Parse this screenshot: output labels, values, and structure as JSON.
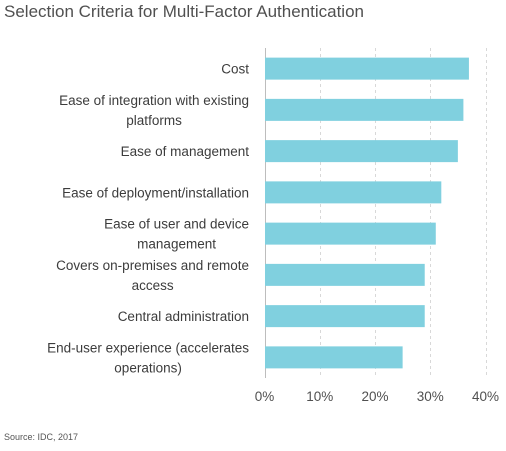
{
  "chart_data": {
    "type": "bar",
    "orientation": "horizontal",
    "title": "Selection Criteria for Multi-Factor Authentication",
    "source": "Source: IDC, 2017",
    "categories": [
      [
        "Cost"
      ],
      [
        "Ease of integration with existing",
        "platforms"
      ],
      [
        "Ease of management"
      ],
      [
        "Ease of deployment/installation"
      ],
      [
        "Ease of user and device",
        "management"
      ],
      [
        "Covers on-premises and remote",
        "access"
      ],
      [
        "Central administration"
      ],
      [
        "End-user experience (accelerates",
        "operations)"
      ]
    ],
    "values": [
      37,
      36,
      35,
      32,
      31,
      29,
      29,
      25
    ],
    "xlim": [
      0,
      40
    ],
    "xticks": [
      0,
      10,
      20,
      30,
      40
    ],
    "tick_labels": [
      "0%",
      "10%",
      "20%",
      "30%",
      "40%"
    ],
    "grid": true,
    "legend": "none",
    "bar_color": "#80d0df"
  }
}
